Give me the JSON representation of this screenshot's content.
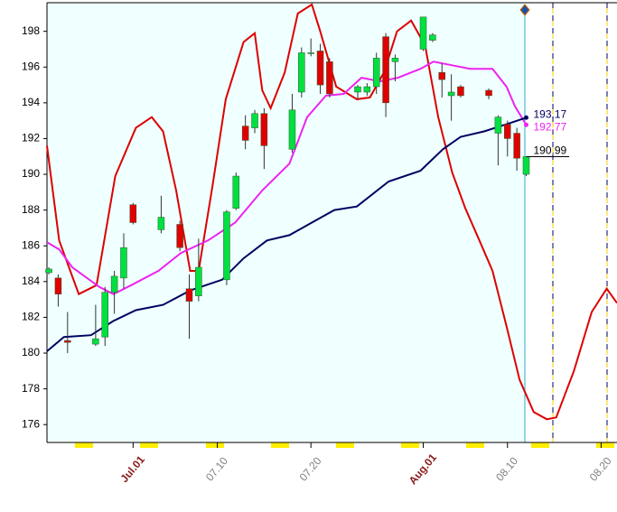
{
  "chart_data": {
    "type": "candlestick",
    "candles": {
      "x": [
        -8,
        -7,
        -6,
        -3,
        -2,
        -1,
        0,
        1,
        4,
        6,
        7,
        8,
        11,
        12,
        13,
        14,
        15,
        18,
        19,
        20,
        21,
        22,
        25,
        26,
        27,
        28,
        29,
        32,
        33,
        34,
        35,
        36,
        39,
        40,
        41,
        42,
        43
      ],
      "open": [
        184.5,
        184.2,
        180.7,
        180.5,
        180.9,
        183.4,
        184.2,
        188.3,
        186.9,
        187.2,
        183.6,
        183.2,
        184.1,
        188.1,
        192.7,
        192.6,
        193.4,
        191.4,
        194.6,
        196.8,
        196.9,
        196.3,
        194.6,
        194.6,
        194.9,
        197.7,
        196.3,
        197.0,
        197.5,
        195.7,
        194.4,
        194.9,
        194.7,
        192.3,
        192.8,
        192.3,
        190.0
      ],
      "high": [
        184.8,
        184.4,
        182.3,
        182.7,
        183.7,
        184.6,
        186.7,
        188.4,
        188.8,
        187.4,
        184.4,
        186.4,
        188.0,
        190.1,
        193.3,
        193.6,
        193.7,
        194.5,
        197.1,
        197.6,
        197.3,
        196.5,
        195.0,
        195.1,
        196.8,
        197.9,
        196.7,
        198.8,
        197.9,
        196.2,
        195.6,
        195.0,
        194.8,
        193.3,
        193.0,
        192.6,
        191.0
      ],
      "low": [
        184.4,
        182.6,
        180.0,
        180.4,
        180.4,
        182.2,
        183.6,
        187.2,
        186.7,
        185.7,
        180.8,
        182.9,
        183.8,
        188.0,
        191.4,
        192.3,
        190.3,
        191.2,
        194.3,
        196.6,
        194.5,
        194.3,
        194.2,
        194.4,
        194.5,
        193.2,
        195.2,
        196.9,
        197.4,
        194.3,
        193.0,
        194.3,
        194.2,
        190.5,
        191.0,
        190.2,
        189.9
      ],
      "close": [
        184.7,
        183.3,
        180.6,
        180.8,
        183.4,
        184.3,
        185.9,
        187.3,
        187.6,
        185.9,
        182.9,
        184.8,
        187.9,
        189.9,
        191.9,
        193.4,
        191.6,
        193.6,
        196.8,
        196.8,
        195.0,
        194.5,
        194.9,
        194.9,
        196.5,
        194.0,
        196.5,
        198.8,
        197.8,
        195.3,
        194.6,
        194.4,
        194.4,
        193.2,
        192.0,
        190.9,
        190.99
      ]
    },
    "up_color": "#00e040",
    "down_color": "#e00000",
    "lines": [
      {
        "color": "#dd0000",
        "x": [
          -8.2,
          -6.9,
          -4.8,
          -2.9,
          -0.9,
          1.3,
          3.0,
          4.2,
          5.6,
          7.1,
          8.0,
          9.5,
          10.9,
          12.8,
          14.0,
          14.8,
          15.7,
          17.2,
          18.6,
          20.1,
          21.0,
          22.7,
          24.9,
          26.3,
          27.8,
          29.2,
          30.7,
          32.2,
          33.6,
          35.1,
          36.5,
          38.0,
          39.4,
          40.9,
          42.3,
          43.8,
          45.2,
          46.2,
          48.1,
          50.0,
          51.6,
          52.7
        ],
        "values": [
          191.6,
          186.3,
          183.3,
          183.8,
          189.9,
          192.6,
          193.2,
          192.4,
          189.1,
          184.6,
          184.6,
          189.4,
          194.2,
          197.4,
          197.9,
          194.7,
          193.7,
          195.7,
          199.0,
          199.5,
          198.0,
          194.9,
          194.2,
          194.3,
          195.7,
          198.0,
          198.6,
          197.2,
          193.2,
          190.1,
          188.1,
          186.3,
          184.6,
          181.5,
          178.5,
          176.7,
          176.3,
          176.4,
          179.0,
          182.3,
          183.6,
          182.8
        ]
      },
      {
        "color": "#ee22ee",
        "x": [
          -8.2,
          -6.9,
          -5.5,
          -2.6,
          -1.1,
          0.8,
          3.7,
          6.1,
          9.0,
          11.9,
          14.8,
          17.7,
          19.6,
          21.6,
          23.5,
          25.4,
          27.4,
          29.3,
          31.7,
          33.1,
          35.1,
          37.0,
          39.4,
          40.9,
          41.8,
          43
        ],
        "values": [
          186.2,
          185.8,
          184.8,
          183.7,
          183.3,
          183.8,
          184.6,
          185.6,
          186.3,
          187.3,
          189.1,
          190.6,
          193.2,
          194.4,
          194.5,
          195.4,
          195.2,
          195.4,
          195.9,
          196.3,
          196.1,
          195.9,
          195.9,
          194.9,
          193.8,
          192.77
        ]
      },
      {
        "color": "#000060",
        "x": [
          -8.2,
          -6.4,
          -3.5,
          -1.1,
          1.3,
          4.2,
          7.1,
          10.5,
          12.8,
          15.3,
          17.7,
          20.1,
          22.5,
          24.9,
          28.3,
          31.7,
          34.1,
          36.0,
          38.5,
          40.9,
          43
        ],
        "values": [
          180.1,
          180.9,
          181.0,
          181.8,
          182.4,
          182.7,
          183.5,
          184.1,
          185.3,
          186.3,
          186.6,
          187.3,
          188.0,
          188.2,
          189.6,
          190.2,
          191.4,
          192.1,
          192.4,
          192.8,
          193.17
        ]
      }
    ],
    "price_labels": [
      193.17,
      192.77,
      190.99
    ],
    "price_label_colors": [
      "#000060",
      "#ee22ee",
      "#000000"
    ],
    "xlim": [
      -8.2,
      52.7
    ],
    "ylim": [
      175,
      199.6
    ],
    "xticks": [
      {
        "value": 1,
        "label": "Jul.01"
      },
      {
        "value": 10,
        "label": "07.10"
      },
      {
        "value": 20,
        "label": "07.20"
      },
      {
        "value": 32,
        "label": "Aug.01"
      },
      {
        "value": 41,
        "label": "08.10"
      },
      {
        "value": 51,
        "label": "08.20"
      }
    ],
    "xtick_colors": [
      "#8b1a1a",
      "#808080",
      "#808080",
      "#8b1a1a",
      "#808080",
      "#808080"
    ],
    "yticks": [
      176,
      178,
      180,
      182,
      184,
      186,
      188,
      190,
      192,
      194,
      196,
      198
    ]
  }
}
